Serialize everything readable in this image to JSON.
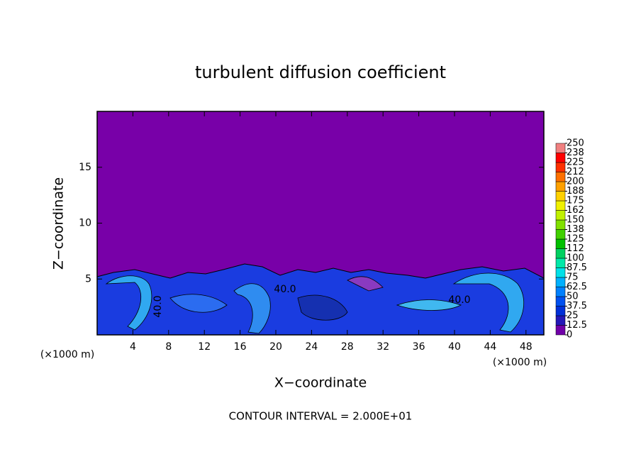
{
  "chart_data": {
    "type": "contour",
    "title": "turbulent diffusion coefficient",
    "x_label": "X−coordinate",
    "y_label": "Z−coordinate",
    "x_unit": "(×1000 m)",
    "y_unit": "(×1000 m)",
    "footer": "CONTOUR INTERVAL = 2.000E+01",
    "xlim": [
      0,
      50
    ],
    "xticks": [
      4,
      8,
      12,
      16,
      20,
      24,
      28,
      32,
      36,
      40,
      44,
      48
    ],
    "ylim": [
      0,
      20
    ],
    "yticks": [
      5,
      10,
      15
    ],
    "contour_labels": [
      "40.0",
      "40.0",
      "40.0"
    ],
    "colorbar": {
      "levels": [
        0,
        12.5,
        25,
        37.5,
        50,
        62.5,
        75,
        87.5,
        100,
        {
          "value": 112.5,
          "label": "112"
        },
        125,
        {
          "value": 137.5,
          "label": "138"
        },
        150,
        {
          "value": 162.5,
          "label": "162"
        },
        175,
        {
          "value": 187.5,
          "label": "188"
        },
        200,
        {
          "value": 212.5,
          "label": "212"
        },
        225,
        {
          "value": 237.5,
          "label": "238"
        },
        250
      ],
      "colors": [
        "#7000a8",
        "#2418b8",
        "#0030d8",
        "#0050f0",
        "#0080ff",
        "#00b0ff",
        "#00e0e8",
        "#00e8a8",
        "#00d060",
        "#00c000",
        "#40d000",
        "#80e000",
        "#c0f000",
        "#f0f000",
        "#ffd000",
        "#ffa000",
        "#ff7000",
        "#ff3000",
        "#ff0000",
        "#f08080"
      ]
    }
  }
}
